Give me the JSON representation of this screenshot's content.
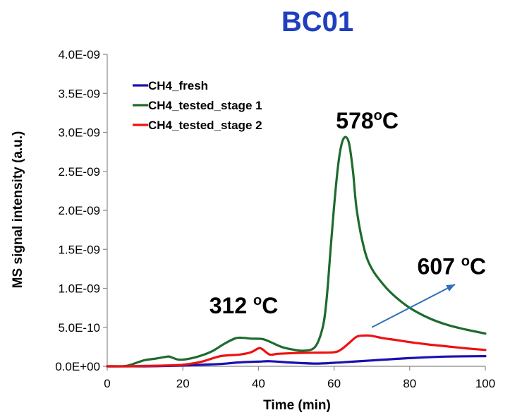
{
  "chart_data": {
    "type": "line",
    "title": "BC01",
    "title_color": "#1f3fbf",
    "xlabel": "Time (min)",
    "ylabel": "MS signal intensity (a.u.)",
    "xlim": [
      0,
      100
    ],
    "ylim": [
      0,
      4e-09
    ],
    "xticks": [
      0,
      20,
      40,
      60,
      80,
      100
    ],
    "xtick_labels": [
      "0",
      "20",
      "40",
      "60",
      "80",
      "100"
    ],
    "yticks": [
      0,
      5e-10,
      1e-09,
      1.5e-09,
      2e-09,
      2.5e-09,
      3e-09,
      3.5e-09,
      4e-09
    ],
    "ytick_labels": [
      "0.0E+00",
      "5.0E-10",
      "1.0E-09",
      "1.5E-09",
      "2.0E-09",
      "2.5E-09",
      "3.0E-09",
      "3.5E-09",
      "4.0E-09"
    ],
    "grid": false,
    "legend_position": "top-left",
    "series": [
      {
        "name": "CH4_fresh",
        "color": "#1a10b0",
        "x": [
          0,
          10,
          20,
          25,
          30,
          35,
          40,
          43,
          48,
          55,
          60,
          65,
          70,
          80,
          90,
          100
        ],
        "y": [
          0,
          0,
          1e-11,
          2e-11,
          3e-11,
          5e-11,
          6e-11,
          6.5e-11,
          5e-11,
          3.5e-11,
          4.5e-11,
          6e-11,
          7.5e-11,
          1.05e-10,
          1.25e-10,
          1.3e-10
        ]
      },
      {
        "name": "CH4_tested_stage 1",
        "color": "#1e6b2e",
        "x": [
          0,
          5,
          8,
          10,
          13,
          16,
          17,
          19,
          22,
          25,
          28,
          31,
          34,
          36,
          38,
          41,
          43,
          46,
          49,
          52,
          55,
          57,
          58,
          59,
          60,
          61,
          62,
          63,
          64,
          65,
          66,
          68,
          70,
          73,
          76,
          80,
          85,
          90,
          95,
          100
        ],
        "y": [
          0,
          5e-12,
          5e-11,
          8e-11,
          1e-10,
          1.25e-10,
          1.15e-10,
          8.5e-11,
          1e-10,
          1.4e-10,
          2e-10,
          2.9e-10,
          3.6e-10,
          3.65e-10,
          3.55e-10,
          3.5e-10,
          3.15e-10,
          2.5e-10,
          2.15e-10,
          2e-10,
          2.5e-10,
          5e-10,
          8.5e-10,
          1.45e-09,
          2.05e-09,
          2.55e-09,
          2.85e-09,
          2.94e-09,
          2.85e-09,
          2.5e-09,
          2e-09,
          1.5e-09,
          1.25e-09,
          1.05e-09,
          9e-10,
          7.5e-10,
          6.2e-10,
          5.3e-10,
          4.7e-10,
          4.2e-10
        ]
      },
      {
        "name": "CH4_tested_stage 2",
        "color": "#ee1111",
        "x": [
          0,
          5,
          10,
          15,
          20,
          25,
          30,
          35,
          38,
          40,
          41,
          43,
          45,
          50,
          55,
          60,
          62,
          64,
          66,
          68,
          70,
          73,
          76,
          80,
          85,
          90,
          95,
          100
        ],
        "y": [
          0,
          0,
          5e-12,
          1e-11,
          2e-11,
          6e-11,
          1.3e-10,
          1.5e-10,
          1.8e-10,
          2.3e-10,
          2.2e-10,
          1.5e-10,
          1.6e-10,
          1.7e-10,
          1.75e-10,
          1.8e-10,
          2.2e-10,
          3e-10,
          3.8e-10,
          3.95e-10,
          3.9e-10,
          3.6e-10,
          3.4e-10,
          3.1e-10,
          2.8e-10,
          2.55e-10,
          2.3e-10,
          2.1e-10
        ]
      }
    ],
    "annotations": [
      {
        "base": "578",
        "sup": "o",
        "unit": "C",
        "at_x": 60.5,
        "at_y": 3.05e-09
      },
      {
        "base": "312 ",
        "sup": "o",
        "unit": "C",
        "at_x": 27,
        "at_y": 6.8e-10
      },
      {
        "base": "607 ",
        "sup": "o",
        "unit": "C",
        "at_x": 82,
        "at_y": 1.18e-09
      }
    ],
    "arrow": {
      "color": "#2e6fb8",
      "from": [
        70,
        5e-10
      ],
      "to": [
        92,
        1.05e-09
      ]
    }
  }
}
